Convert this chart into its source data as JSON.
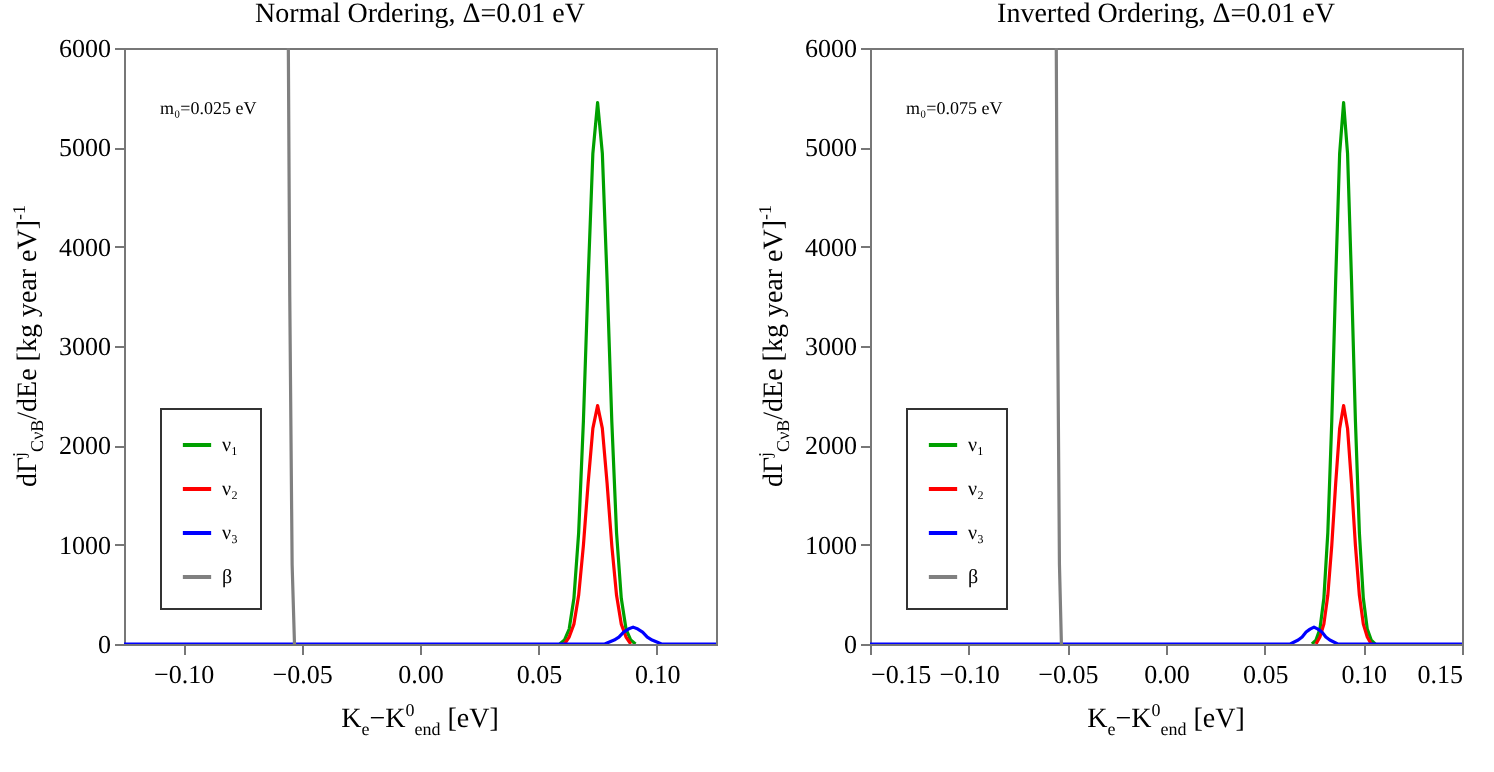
{
  "chart_data": [
    {
      "type": "line",
      "title": "Normal Ordering, Δ=0.01 eV",
      "xlabel": "K$_{e}$−K$^{0}$$_{end}$ [eV]",
      "ylabel": "dΓ$^{j}$$_{CνB}$/dEe [kg year eV]$^{-1}$",
      "annotations": [
        "m₀=0.025 eV"
      ],
      "xlim": [
        -0.125,
        0.125
      ],
      "xticks": [
        {
          "value": -0.1,
          "label": "−0.10"
        },
        {
          "value": -0.05,
          "label": "−0.05"
        },
        {
          "value": 0,
          "label": "0.00"
        },
        {
          "value": 0.05,
          "label": "0.05"
        },
        {
          "value": 0.1,
          "label": "0.10"
        }
      ],
      "ylim": [
        0,
        6000
      ],
      "yticks": [
        0,
        1000,
        2000,
        3000,
        4000,
        5000,
        6000
      ],
      "grid": false,
      "legend": "bottom left",
      "line_style": "solid",
      "series": [
        {
          "name": "ν₁",
          "color": "#00a000",
          "x": [
            0.059,
            0.061,
            0.063,
            0.065,
            0.067,
            0.069,
            0.071,
            0.073,
            0.075,
            0.077,
            0.079,
            0.081,
            0.083,
            0.085,
            0.087,
            0.089,
            0.091
          ],
          "values": [
            0,
            40,
            150,
            460,
            1120,
            2240,
            3670,
            4940,
            5450,
            4940,
            3670,
            2240,
            1120,
            460,
            150,
            40,
            0
          ]
        },
        {
          "name": "ν₂",
          "color": "#ff0000",
          "x": [
            0.061,
            0.063,
            0.065,
            0.067,
            0.069,
            0.071,
            0.073,
            0.075,
            0.077,
            0.079,
            0.081,
            0.083,
            0.085,
            0.087,
            0.089
          ],
          "values": [
            0,
            70,
            200,
            490,
            990,
            1620,
            2170,
            2400,
            2170,
            1620,
            990,
            490,
            200,
            70,
            0
          ]
        },
        {
          "name": "ν₃",
          "color": "#0000ff",
          "x": [
            -0.125,
            0.078,
            0.082,
            0.084,
            0.086,
            0.088,
            0.09,
            0.092,
            0.094,
            0.096,
            0.098,
            0.102,
            0.125
          ],
          "values": [
            0,
            0,
            40,
            70,
            120,
            150,
            170,
            150,
            120,
            70,
            40,
            0,
            0
          ]
        },
        {
          "name": "β",
          "color": "#808080",
          "x": [
            -0.0556,
            -0.055,
            -0.054,
            -0.053
          ],
          "values": [
            6000,
            3500,
            800,
            0
          ]
        }
      ]
    },
    {
      "type": "line",
      "title": "Inverted Ordering, Δ=0.01 eV",
      "xlabel": "K$_{e}$−K$^{0}$$_{end}$ [eV]",
      "ylabel": "dΓ$^{j}$$_{CνB}$/dEe [kg year eV]$^{-1}$",
      "annotations": [
        "m₀=0.075 eV"
      ],
      "xlim": [
        -0.15,
        0.15
      ],
      "xticks": [
        {
          "value": -0.15,
          "label": "−0.15"
        },
        {
          "value": -0.1,
          "label": "−0.10"
        },
        {
          "value": -0.05,
          "label": "−0.05"
        },
        {
          "value": 0,
          "label": "0.00"
        },
        {
          "value": 0.05,
          "label": "0.05"
        },
        {
          "value": 0.1,
          "label": "0.10"
        },
        {
          "value": 0.15,
          "label": "0.15"
        }
      ],
      "ylim": [
        0,
        6000
      ],
      "yticks": [
        0,
        1000,
        2000,
        3000,
        4000,
        5000,
        6000
      ],
      "grid": false,
      "legend": "bottom left",
      "line_style": "solid",
      "series": [
        {
          "name": "ν₁",
          "color": "#00a000",
          "x": [
            0.074,
            0.076,
            0.078,
            0.08,
            0.082,
            0.084,
            0.086,
            0.088,
            0.09,
            0.092,
            0.094,
            0.096,
            0.098,
            0.1,
            0.102,
            0.104,
            0.106
          ],
          "values": [
            0,
            40,
            150,
            460,
            1120,
            2240,
            3670,
            4940,
            5450,
            4940,
            3670,
            2240,
            1120,
            460,
            150,
            40,
            0
          ]
        },
        {
          "name": "ν₂",
          "color": "#ff0000",
          "x": [
            0.076,
            0.078,
            0.08,
            0.082,
            0.084,
            0.086,
            0.088,
            0.09,
            0.092,
            0.094,
            0.096,
            0.098,
            0.1,
            0.102,
            0.104
          ],
          "values": [
            0,
            70,
            200,
            490,
            990,
            1620,
            2170,
            2400,
            2170,
            1620,
            990,
            490,
            200,
            70,
            0
          ]
        },
        {
          "name": "ν₃",
          "color": "#0000ff",
          "x": [
            -0.15,
            0.063,
            0.067,
            0.069,
            0.071,
            0.073,
            0.075,
            0.077,
            0.079,
            0.081,
            0.083,
            0.087,
            0.15
          ],
          "values": [
            0,
            0,
            40,
            70,
            120,
            150,
            170,
            150,
            120,
            70,
            40,
            0,
            0
          ]
        },
        {
          "name": "β",
          "color": "#808080",
          "x": [
            -0.0556,
            -0.055,
            -0.054,
            -0.053
          ],
          "values": [
            6000,
            3500,
            800,
            0
          ]
        }
      ]
    }
  ]
}
